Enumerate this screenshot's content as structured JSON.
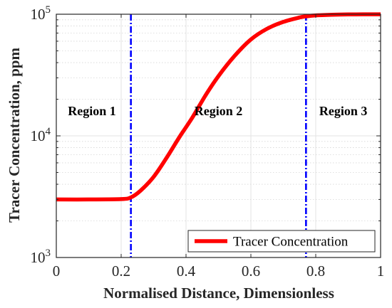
{
  "chart_data": {
    "type": "line",
    "xlabel": "Normalised Distance, Dimensionless",
    "ylabel": "Tracer Concentration, ppm",
    "xlim": [
      0,
      1
    ],
    "ylim": [
      1000,
      100000
    ],
    "yscale": "log",
    "grid": true,
    "legend_position": "bottom-right",
    "x_ticks": [
      "0",
      "0.2",
      "0.4",
      "0.6",
      "0.8",
      "1"
    ],
    "y_ticks": [
      {
        "base": "10",
        "exp": "3"
      },
      {
        "base": "10",
        "exp": "4"
      },
      {
        "base": "10",
        "exp": "5"
      }
    ],
    "series": [
      {
        "name": "Tracer Concentration",
        "color": "#ff0000",
        "x": [
          0,
          0.1,
          0.2,
          0.23,
          0.26,
          0.3,
          0.34,
          0.38,
          0.42,
          0.46,
          0.5,
          0.55,
          0.6,
          0.65,
          0.7,
          0.75,
          0.77,
          0.8,
          0.85,
          0.9,
          0.95,
          1.0
        ],
        "y": [
          3000,
          3000,
          3020,
          3120,
          3550,
          4600,
          6600,
          9800,
          14200,
          21500,
          31000,
          45500,
          62000,
          76000,
          86500,
          94000,
          96000,
          97800,
          99000,
          99600,
          99800,
          99900
        ]
      }
    ],
    "vlines": [
      {
        "x": 0.23,
        "color": "#0000ff",
        "style": "dash-dot"
      },
      {
        "x": 0.77,
        "color": "#0000ff",
        "style": "dash-dot"
      }
    ],
    "annotations": [
      {
        "text": "Region 1",
        "x": 0.11,
        "y": 16000
      },
      {
        "text": "Region 2",
        "x": 0.5,
        "y": 16000
      },
      {
        "text": "Region 3",
        "x": 0.885,
        "y": 16000
      }
    ]
  }
}
